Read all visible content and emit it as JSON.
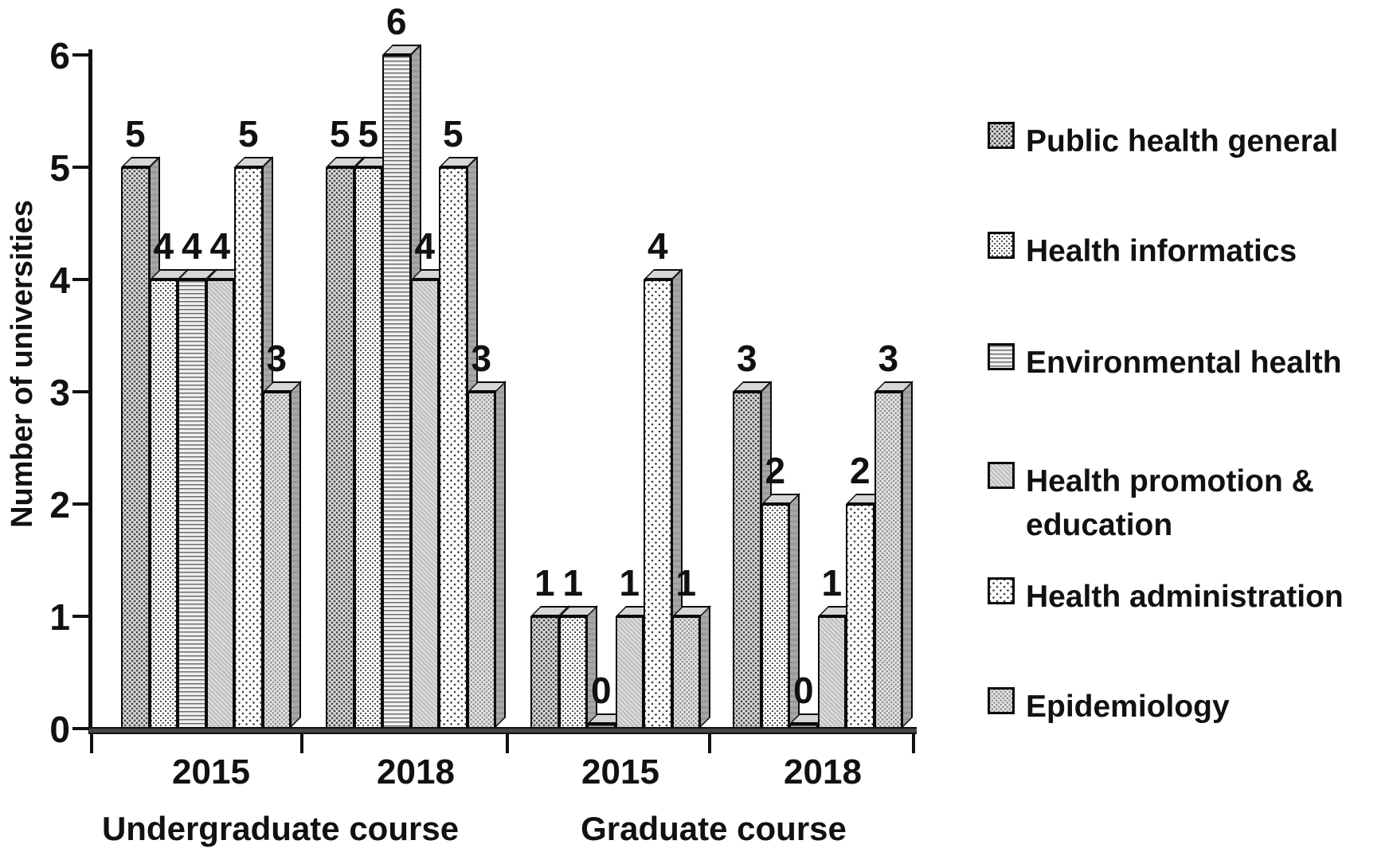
{
  "chart_data": {
    "type": "bar",
    "title": "",
    "ylabel": "Number of universities",
    "ylim": [
      0,
      6
    ],
    "yticks": [
      0,
      1,
      2,
      3,
      4,
      5,
      6
    ],
    "grid": false,
    "legend_position": "right",
    "groups": [
      {
        "year": "2015",
        "course": "Undergraduate course"
      },
      {
        "year": "2018",
        "course": "Undergraduate course"
      },
      {
        "year": "2015",
        "course": "Graduate course"
      },
      {
        "year": "2018",
        "course": "Graduate course"
      }
    ],
    "course_labels": [
      "Undergraduate course",
      "Graduate course"
    ],
    "series": [
      {
        "name": "Public health general",
        "pattern": "crosshatch",
        "marker_icon": "crosshatch-swatch-icon",
        "values": [
          5,
          5,
          1,
          3
        ]
      },
      {
        "name": "Health informatics",
        "pattern": "fine-dots",
        "marker_icon": "fine-dots-swatch-icon",
        "values": [
          4,
          5,
          1,
          2
        ]
      },
      {
        "name": "Environmental health",
        "pattern": "h-lines",
        "marker_icon": "h-lines-swatch-icon",
        "values": [
          4,
          6,
          0,
          0
        ]
      },
      {
        "name": "Health promotion & education",
        "pattern": "diag-gray",
        "marker_icon": "diag-stripes-swatch-icon",
        "values": [
          4,
          4,
          1,
          1
        ]
      },
      {
        "name": "Health administration",
        "pattern": "sparse-dots",
        "marker_icon": "sparse-dots-swatch-icon",
        "values": [
          5,
          5,
          4,
          2
        ]
      },
      {
        "name": "Epidemiology",
        "pattern": "light-dots",
        "marker_icon": "light-dots-swatch-icon",
        "values": [
          3,
          3,
          1,
          3
        ]
      }
    ],
    "colors": {
      "bar_outline": "#0a0a0a",
      "bar_top_face": "#d6d6d6",
      "bar_side_face": "#a8a8a8",
      "axis": "#111111",
      "text": "#111111",
      "background": "#ffffff"
    }
  }
}
